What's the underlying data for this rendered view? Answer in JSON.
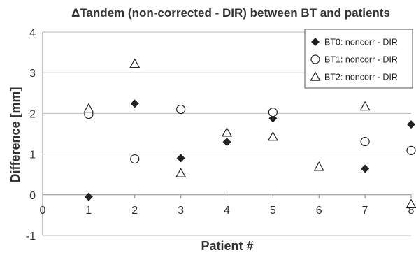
{
  "chart_data": {
    "type": "scatter",
    "title": "ΔTandem (non-corrected - DIR) between BT and patients",
    "xlabel": "Patient #",
    "ylabel": "Difference [mm]",
    "xlim": [
      0,
      8
    ],
    "ylim": [
      -1,
      4
    ],
    "xticks": [
      0,
      1,
      2,
      3,
      4,
      5,
      6,
      7,
      8
    ],
    "yticks": [
      -1,
      0,
      1,
      2,
      3,
      4
    ],
    "grid": "horizontal",
    "legend_position": "top-right",
    "series": [
      {
        "name": "BT0: noncorr - DIR",
        "marker": "diamond",
        "color": "#222222",
        "points": [
          {
            "x": 1,
            "y": -0.05
          },
          {
            "x": 2,
            "y": 2.24
          },
          {
            "x": 3,
            "y": 0.9
          },
          {
            "x": 4,
            "y": 1.3
          },
          {
            "x": 5,
            "y": 1.88
          },
          {
            "x": 7,
            "y": 0.64
          },
          {
            "x": 8,
            "y": 1.73
          }
        ]
      },
      {
        "name": "BT1: noncorr - DIR",
        "marker": "circle",
        "color": "#222222",
        "points": [
          {
            "x": 1,
            "y": 1.98
          },
          {
            "x": 2,
            "y": 0.88
          },
          {
            "x": 3,
            "y": 2.1
          },
          {
            "x": 5,
            "y": 2.03
          },
          {
            "x": 7,
            "y": 1.31
          },
          {
            "x": 8,
            "y": 1.09
          }
        ]
      },
      {
        "name": "BT2: noncorr - DIR",
        "marker": "triangle",
        "color": "#222222",
        "points": [
          {
            "x": 1,
            "y": 2.12
          },
          {
            "x": 2,
            "y": 3.22
          },
          {
            "x": 3,
            "y": 0.53
          },
          {
            "x": 4,
            "y": 1.53
          },
          {
            "x": 5,
            "y": 1.43
          },
          {
            "x": 6,
            "y": 0.69
          },
          {
            "x": 7,
            "y": 2.17
          },
          {
            "x": 8,
            "y": -0.23
          }
        ]
      }
    ]
  }
}
